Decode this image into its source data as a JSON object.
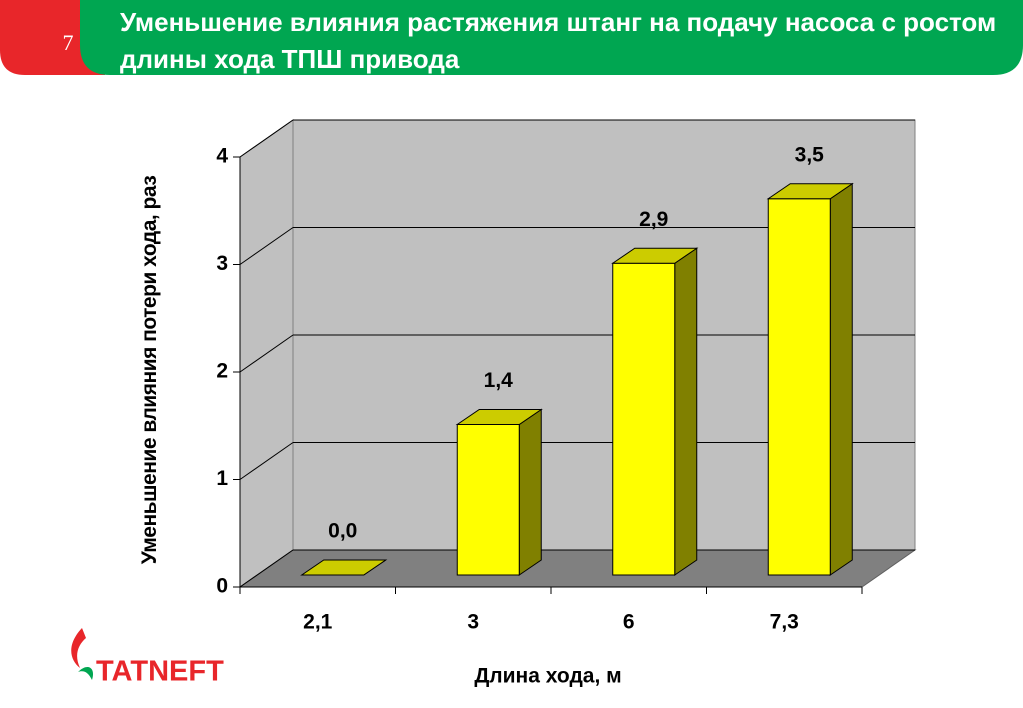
{
  "slide_number": "7",
  "logo": "TATNEFT",
  "chart_data": {
    "type": "bar3d",
    "title": "Уменьшение влияния растяжения штанг на подачу насоса с ростом длины хода ТПШ привода",
    "x_label": "Длина хода, м",
    "y_label": "Уменьшение влияния потери хода, раз",
    "categories": [
      "2,1",
      "3",
      "6",
      "7,3"
    ],
    "values": [
      0.0,
      1.4,
      2.9,
      3.5
    ],
    "value_labels": [
      "0,0",
      "1,4",
      "2,9",
      "3,5"
    ],
    "color": "#ffff00",
    "ylim": [
      0,
      4
    ],
    "yticks": [
      0,
      1,
      2,
      3,
      4
    ],
    "grid": true
  }
}
